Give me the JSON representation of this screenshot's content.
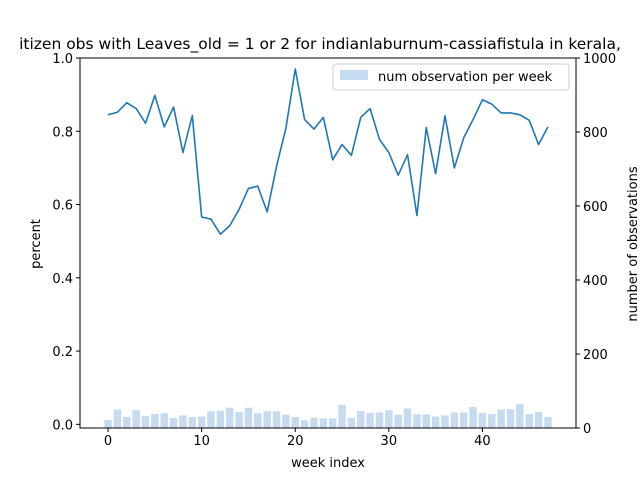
{
  "chart_data": {
    "type": "bar+line",
    "title": "itizen obs with Leaves_old = 1 or 2 for indianlaburnum-cassiafistula in kerala,",
    "xlabel": "week index",
    "ylabel_left": "percent",
    "ylabel_right": "number of observations",
    "xlim": [
      -3,
      50
    ],
    "ylim_left": [
      -0.01,
      1.0
    ],
    "ylim_right": [
      0,
      1000
    ],
    "x_ticks": [
      0,
      10,
      20,
      30,
      40
    ],
    "x_tick_labels": [
      "0",
      "10",
      "20",
      "30",
      "40"
    ],
    "y_left_ticks": [
      0.0,
      0.2,
      0.4,
      0.6,
      0.8,
      1.0
    ],
    "y_left_tick_labels": [
      "0.0",
      "0.2",
      "0.4",
      "0.6",
      "0.8",
      "1.0"
    ],
    "y_right_ticks": [
      0,
      200,
      400,
      600,
      800,
      1000
    ],
    "y_right_tick_labels": [
      "0",
      "200",
      "400",
      "600",
      "800",
      "1000"
    ],
    "legend": {
      "placement": "top-right",
      "entries": [
        "num observation per week"
      ]
    },
    "grid": false,
    "colors": {
      "line": "#1f77b4",
      "bar": "#c6dbef",
      "axes": "#000000"
    },
    "weeks": [
      0,
      1,
      2,
      3,
      4,
      5,
      6,
      7,
      8,
      9,
      10,
      11,
      12,
      13,
      14,
      15,
      16,
      17,
      18,
      19,
      20,
      21,
      22,
      23,
      24,
      25,
      26,
      27,
      28,
      29,
      30,
      31,
      32,
      33,
      34,
      35,
      36,
      37,
      38,
      39,
      40,
      41,
      42,
      43,
      44,
      45,
      46,
      47
    ],
    "series": [
      {
        "axis": "left",
        "kind": "line",
        "values": [
          0.845,
          0.852,
          0.878,
          0.862,
          0.822,
          0.898,
          0.812,
          0.866,
          0.742,
          0.843,
          0.566,
          0.56,
          0.519,
          0.542,
          0.587,
          0.644,
          0.65,
          0.58,
          0.704,
          0.808,
          0.97,
          0.832,
          0.806,
          0.838,
          0.722,
          0.764,
          0.734,
          0.838,
          0.862,
          0.778,
          0.742,
          0.68,
          0.736,
          0.57,
          0.81,
          0.684,
          0.842,
          0.7,
          0.782,
          0.832,
          0.886,
          0.874,
          0.85,
          0.85,
          0.845,
          0.83,
          0.764,
          0.812
        ]
      },
      {
        "name": "num observation per week",
        "axis": "right",
        "kind": "bar",
        "values": [
          22,
          50,
          30,
          48,
          32,
          38,
          40,
          27,
          34,
          30,
          31,
          45,
          47,
          55,
          43,
          55,
          40,
          45,
          45,
          36,
          30,
          21,
          28,
          26,
          26,
          63,
          27,
          46,
          41,
          42,
          48,
          36,
          53,
          37,
          37,
          31,
          34,
          42,
          42,
          57,
          41,
          38,
          50,
          51,
          65,
          38,
          43,
          30
        ]
      }
    ]
  }
}
